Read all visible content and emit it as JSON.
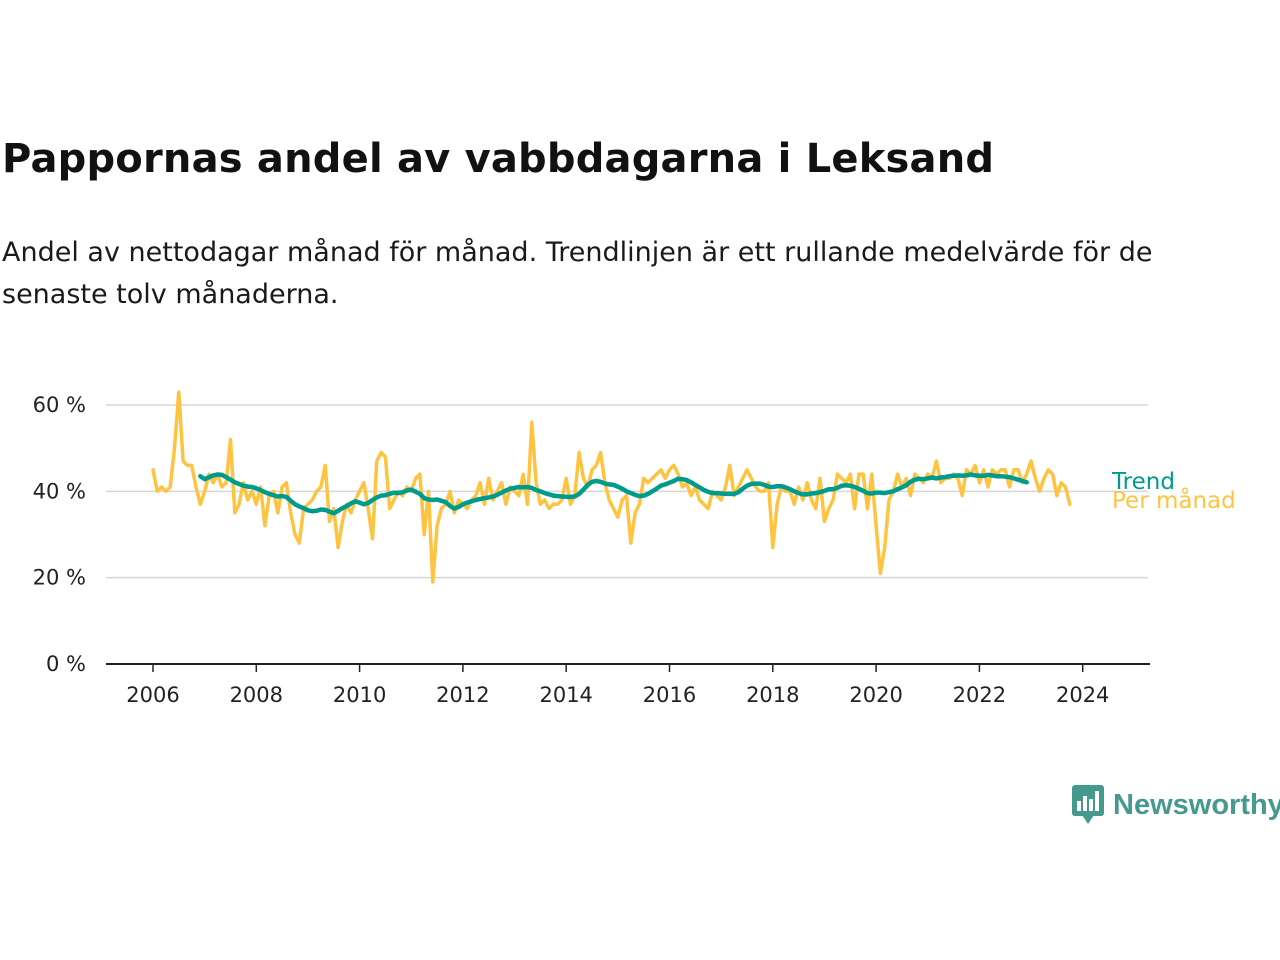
{
  "title": "Pappornas andel av vabbdagarna i Leksand",
  "subtitle": "Andel av nettodagar månad för månad. Trendlinjen är ett rullande medelvärde för de senaste tolv månaderna.",
  "brand": {
    "name": "Newsworthy",
    "icon": "newsworthy-logo-icon",
    "color": "#45998f"
  },
  "chart_data": {
    "type": "line",
    "x_ticks": [
      "2006",
      "2008",
      "2010",
      "2012",
      "2014",
      "2016",
      "2018",
      "2020",
      "2022",
      "2024"
    ],
    "y_ticks": [
      "0 %",
      "20 %",
      "40 %",
      "60 %"
    ],
    "ylim": [
      0,
      60
    ],
    "xlim": [
      "2006-01",
      "2024-05"
    ],
    "grid": "horizontal",
    "series": [
      {
        "name": "Per månad",
        "color": "#ffc342",
        "start": "2006-01",
        "values": [
          45,
          40,
          41,
          40,
          41,
          50,
          63,
          47,
          46,
          46,
          41,
          37,
          40,
          44,
          42,
          44,
          41,
          42,
          52,
          35,
          37,
          42,
          38,
          40,
          37,
          41,
          32,
          39,
          40,
          35,
          41,
          42,
          35,
          30,
          28,
          36,
          37,
          38,
          40,
          41,
          46,
          33,
          36,
          27,
          33,
          37,
          35,
          38,
          40,
          42,
          36,
          29,
          47,
          49,
          48,
          36,
          38,
          40,
          39,
          41,
          40,
          43,
          44,
          30,
          40,
          19,
          32,
          36,
          37,
          40,
          35,
          38,
          37,
          36,
          38,
          39,
          42,
          37,
          43,
          38,
          40,
          42,
          37,
          41,
          40,
          39,
          44,
          37,
          56,
          42,
          37,
          38,
          36,
          37,
          37,
          38,
          43,
          37,
          39,
          49,
          43,
          41,
          45,
          46,
          49,
          42,
          38,
          36,
          34,
          38,
          39,
          28,
          35,
          37,
          43,
          42,
          43,
          44,
          45,
          43,
          45,
          46,
          44,
          41,
          42,
          39,
          41,
          38,
          37,
          36,
          40,
          39,
          38,
          41,
          46,
          39,
          41,
          43,
          45,
          43,
          41,
          40,
          40,
          42,
          27,
          37,
          41,
          40,
          40,
          37,
          41,
          38,
          42,
          38,
          36,
          43,
          33,
          36,
          38,
          44,
          43,
          42,
          44,
          36,
          44,
          44,
          36,
          44,
          32,
          21,
          27,
          38,
          40,
          44,
          41,
          43,
          39,
          44,
          43,
          42,
          44,
          43,
          47,
          42,
          43,
          43,
          44,
          43,
          39,
          45,
          44,
          46,
          42,
          45,
          41,
          45,
          44,
          45,
          45,
          41,
          45,
          45,
          42,
          44,
          47,
          43,
          40,
          43,
          45,
          44,
          39,
          42,
          41,
          37
        ]
      },
      {
        "name": "Trend",
        "color": "#009b8d",
        "start": "2006-12",
        "values": [
          43.5,
          42.8,
          43.3,
          43.7,
          43.9,
          43.8,
          43.3,
          42.7,
          42.1,
          41.7,
          41.3,
          41.1,
          41.0,
          40.7,
          40.3,
          39.8,
          39.4,
          39.1,
          38.8,
          38.9,
          38.7,
          37.8,
          37.0,
          36.5,
          36.1,
          35.6,
          35.4,
          35.5,
          35.8,
          35.7,
          35.3,
          34.9,
          35.5,
          36.1,
          36.6,
          37.2,
          37.7,
          37.4,
          37.0,
          37.3,
          38.0,
          38.6,
          39.0,
          39.1,
          39.4,
          39.7,
          39.6,
          39.8,
          40.2,
          40.4,
          39.9,
          39.4,
          38.4,
          38.1,
          38.0,
          38.1,
          37.8,
          37.5,
          36.6,
          36.0,
          36.4,
          37.0,
          37.4,
          37.7,
          38.0,
          38.2,
          38.4,
          38.6,
          38.8,
          39.2,
          39.7,
          40.2,
          40.6,
          40.8,
          41.0,
          40.9,
          41.0,
          40.8,
          40.3,
          40.0,
          39.6,
          39.3,
          39.0,
          38.9,
          38.8,
          38.7,
          38.7,
          38.8,
          39.4,
          40.4,
          41.5,
          42.2,
          42.4,
          42.2,
          41.8,
          41.6,
          41.5,
          41.1,
          40.6,
          40.0,
          39.6,
          39.2,
          38.9,
          39.0,
          39.4,
          40.0,
          40.6,
          41.3,
          41.6,
          42.0,
          42.4,
          42.9,
          42.8,
          42.6,
          42.1,
          41.5,
          40.9,
          40.3,
          39.9,
          39.6,
          39.6,
          39.5,
          39.4,
          39.4,
          39.4,
          39.8,
          40.6,
          41.3,
          41.7,
          41.8,
          41.8,
          41.5,
          41.1,
          41.0,
          41.2,
          41.2,
          40.9,
          40.5,
          40.0,
          39.6,
          39.3,
          39.3,
          39.5,
          39.6,
          39.8,
          40.1,
          40.5,
          40.5,
          40.8,
          41.3,
          41.4,
          41.3,
          41.0,
          40.6,
          40.1,
          39.6,
          39.5,
          39.7,
          39.7,
          39.6,
          39.8,
          40.0,
          40.5,
          40.9,
          41.4,
          42.2,
          42.7,
          42.9,
          42.8,
          43.0,
          43.2,
          43.0,
          43.2,
          43.3,
          43.5,
          43.6,
          43.7,
          43.6,
          43.7,
          43.9,
          43.7,
          43.6,
          43.6,
          43.8,
          43.7,
          43.5,
          43.5,
          43.4,
          43.3,
          43.0,
          42.7,
          42.4,
          42.1
        ]
      }
    ]
  }
}
